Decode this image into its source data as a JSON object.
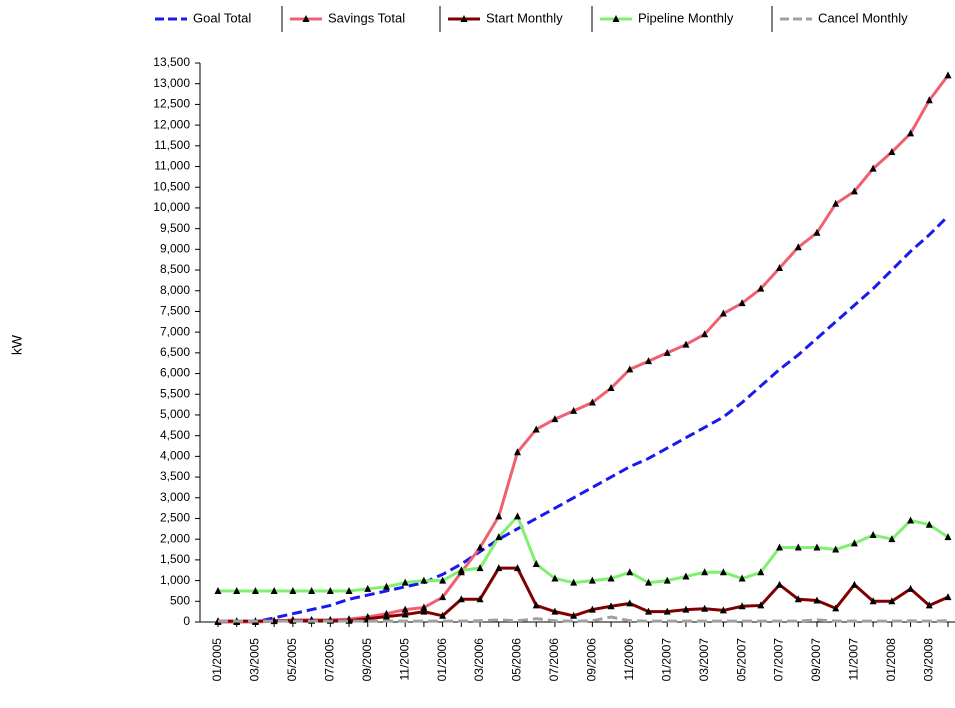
{
  "chart_data": {
    "type": "line",
    "y_label": "kW",
    "categories": [
      "01/2005",
      null,
      "03/2005",
      null,
      "05/2005",
      null,
      "07/2005",
      null,
      "09/2005",
      null,
      "11/2005",
      null,
      "01/2006",
      null,
      "03/2006",
      null,
      "05/2006",
      null,
      "07/2006",
      null,
      "09/2006",
      null,
      "11/2006",
      null,
      "01/2007",
      null,
      "03/2007",
      null,
      "05/2007",
      null,
      "07/2007",
      null,
      "09/2007",
      null,
      "11/2007",
      null,
      "01/2008",
      null,
      "03/2008",
      null
    ],
    "ylim": [
      0,
      13500
    ],
    "yticks": [
      0,
      500,
      {
        "value": 1000,
        "label": "1,000"
      },
      {
        "value": 1500,
        "label": "1,500"
      },
      {
        "value": 2000,
        "label": "2,000"
      },
      {
        "value": 2500,
        "label": "2,500"
      },
      {
        "value": 3000,
        "label": "3,000"
      },
      {
        "value": 3500,
        "label": "3,500"
      },
      {
        "value": 4000,
        "label": "4,000"
      },
      {
        "value": 4500,
        "label": "4,500"
      },
      {
        "value": 5000,
        "label": "5,000"
      },
      {
        "value": 5500,
        "label": "5,500"
      },
      {
        "value": 6000,
        "label": "6,000"
      },
      {
        "value": 6500,
        "label": "6,500"
      },
      {
        "value": 7000,
        "label": "7,000"
      },
      {
        "value": 7500,
        "label": "7,500"
      },
      {
        "value": 8000,
        "label": "8,000"
      },
      {
        "value": 8500,
        "label": "8,500"
      },
      {
        "value": 9000,
        "label": "9,000"
      },
      {
        "value": 9500,
        "label": "9,500"
      },
      {
        "value": 10000,
        "label": "10,000"
      },
      {
        "value": 10500,
        "label": "10,500"
      },
      {
        "value": 11000,
        "label": "11,000"
      },
      {
        "value": 11500,
        "label": "11,500"
      },
      {
        "value": 12000,
        "label": "12,000"
      },
      {
        "value": 12500,
        "label": "12,500"
      },
      {
        "value": 13000,
        "label": "13,000"
      },
      {
        "value": 13500,
        "label": "13,500"
      }
    ],
    "series": [
      {
        "name": "Goal Total",
        "color": "#1a1aee",
        "dashed": true,
        "markers": false,
        "values": [
          0,
          0,
          0,
          100,
          200,
          300,
          400,
          550,
          650,
          750,
          850,
          950,
          1150,
          1400,
          1700,
          2000,
          2250,
          2500,
          2750,
          3000,
          3250,
          3500,
          3750,
          3950,
          4200,
          4450,
          4700,
          4950,
          5300,
          5700,
          6100,
          6450,
          6850,
          7250,
          7650,
          8050,
          8500,
          8950,
          9350,
          9800
        ]
      },
      {
        "name": "Savings Total",
        "color": "#f06070",
        "dashed": false,
        "markers": true,
        "values": [
          0,
          0,
          0,
          20,
          50,
          50,
          50,
          70,
          120,
          200,
          300,
          350,
          600,
          1200,
          1800,
          2550,
          4100,
          4650,
          4900,
          5100,
          5300,
          5650,
          6100,
          6300,
          6500,
          6700,
          6950,
          7450,
          7700,
          8050,
          8550,
          9050,
          9400,
          10100,
          10400,
          10950,
          11350,
          11800,
          12600,
          13200
        ]
      },
      {
        "name": "Start Monthly",
        "color": "#800000",
        "dashed": false,
        "markers": true,
        "values": [
          20,
          20,
          20,
          30,
          30,
          30,
          30,
          30,
          80,
          130,
          180,
          250,
          150,
          550,
          550,
          1300,
          1300,
          400,
          250,
          150,
          300,
          380,
          450,
          250,
          250,
          300,
          320,
          280,
          380,
          400,
          900,
          550,
          520,
          330,
          900,
          500,
          500,
          800,
          400,
          600
        ]
      },
      {
        "name": "Pipeline Monthly",
        "color": "#80f070",
        "dashed": false,
        "markers": true,
        "values": [
          750,
          750,
          750,
          750,
          750,
          750,
          750,
          750,
          800,
          850,
          950,
          1000,
          1000,
          1250,
          1300,
          2050,
          2550,
          1400,
          1050,
          950,
          1000,
          1050,
          1200,
          950,
          1000,
          1100,
          1200,
          1200,
          1050,
          1200,
          1800,
          1800,
          1800,
          1750,
          1900,
          2100,
          2000,
          2450,
          2350,
          2050
        ]
      },
      {
        "name": "Cancel Monthly",
        "color": "#a0a0a0",
        "dashed": true,
        "markers": false,
        "values": [
          20,
          20,
          20,
          20,
          20,
          20,
          20,
          20,
          20,
          20,
          20,
          20,
          20,
          20,
          30,
          50,
          30,
          80,
          30,
          20,
          30,
          120,
          30,
          20,
          20,
          20,
          20,
          20,
          20,
          20,
          20,
          20,
          50,
          20,
          20,
          20,
          20,
          30,
          20,
          30
        ]
      }
    ]
  }
}
